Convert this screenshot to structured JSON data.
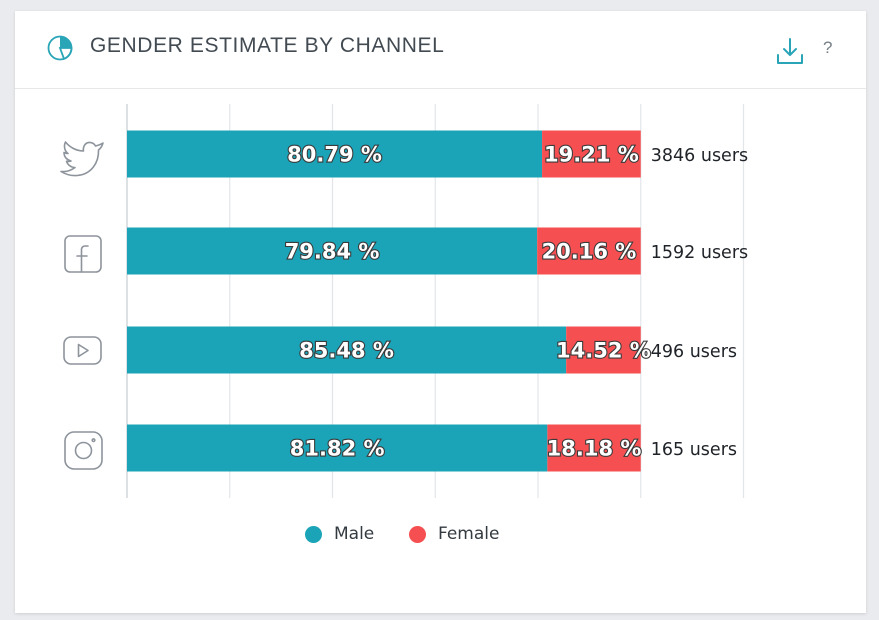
{
  "header": {
    "title": "GENDER ESTIMATE BY CHANNEL",
    "title_icon": "pie-chart-icon",
    "download_icon": "download-icon",
    "help_label": "?"
  },
  "chart_data": {
    "type": "bar",
    "orientation": "horizontal",
    "stacked": true,
    "categories": [
      "Twitter",
      "Facebook",
      "YouTube",
      "Instagram"
    ],
    "category_icons": [
      "twitter-icon",
      "facebook-icon",
      "youtube-icon",
      "instagram-icon"
    ],
    "series": [
      {
        "name": "Male",
        "color": "#1ba3b7",
        "values": [
          80.79,
          79.84,
          85.48,
          81.82
        ],
        "labels": [
          "80.79 %",
          "79.84 %",
          "85.48 %",
          "81.82 %"
        ]
      },
      {
        "name": "Female",
        "color": "#f64f51",
        "values": [
          19.21,
          20.16,
          14.52,
          18.18
        ],
        "labels": [
          "19.21 %",
          "20.16 %",
          "14.52 %",
          "18.18 %"
        ]
      }
    ],
    "totals": [
      "3846 users",
      "1592 users",
      "496 users",
      "165 users"
    ],
    "xlim": [
      0,
      120
    ],
    "grid": true,
    "legend": "bottom-center"
  }
}
